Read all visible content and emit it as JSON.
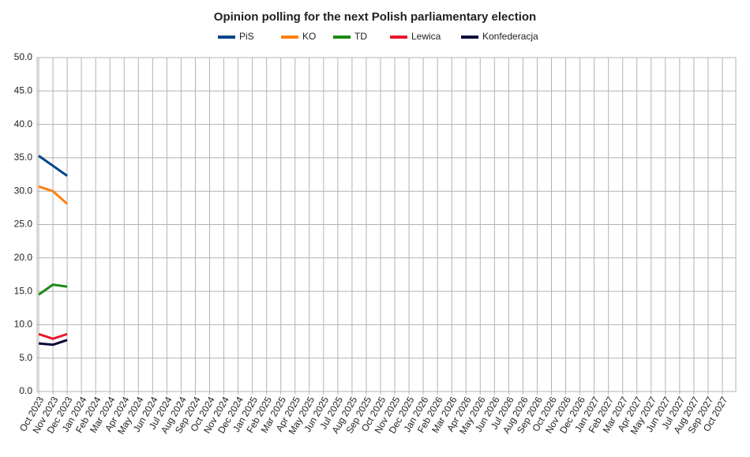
{
  "chart_data": {
    "type": "line",
    "title": "Opinion polling for the next Polish parliamentary election",
    "categories": [
      "Oct 2023",
      "Nov 2023",
      "Dec 2023",
      "Jan 2024",
      "Feb 2024",
      "Mar 2024",
      "Apr 2024",
      "May 2024",
      "Jun 2024",
      "Jul 2024",
      "Aug 2024",
      "Sep 2024",
      "Oct 2024",
      "Nov 2024",
      "Dec 2024",
      "Jan 2025",
      "Feb 2025",
      "Mar 2025",
      "Apr 2025",
      "May 2025",
      "Jun 2025",
      "Jul 2025",
      "Aug 2025",
      "Sep 2025",
      "Oct 2025",
      "Nov 2025",
      "Dec 2025",
      "Jan 2026",
      "Feb 2026",
      "Mar 2026",
      "Apr 2026",
      "May 2026",
      "Jun 2026",
      "Jul 2026",
      "Aug 2026",
      "Sep 2026",
      "Oct 2026",
      "Nov 2026",
      "Dec 2026",
      "Jan 2027",
      "Feb 2027",
      "Mar 2027",
      "Apr 2027",
      "May 2027",
      "Jun 2027",
      "Jul 2027",
      "Aug 2027",
      "Sep 2027",
      "Oct 2027"
    ],
    "series": [
      {
        "name": "PiS",
        "color": "#004586",
        "values": [
          35.3,
          33.8,
          32.3,
          null,
          null,
          null,
          null,
          null,
          null,
          null,
          null,
          null,
          null,
          null,
          null,
          null,
          null,
          null,
          null,
          null,
          null,
          null,
          null,
          null,
          null,
          null,
          null,
          null,
          null,
          null,
          null,
          null,
          null,
          null,
          null,
          null,
          null,
          null,
          null,
          null,
          null,
          null,
          null,
          null,
          null,
          null,
          null,
          null,
          null
        ]
      },
      {
        "name": "KO",
        "color": "#ff7f0e",
        "values": [
          30.7,
          30.0,
          28.1,
          null,
          null,
          null,
          null,
          null,
          null,
          null,
          null,
          null,
          null,
          null,
          null,
          null,
          null,
          null,
          null,
          null,
          null,
          null,
          null,
          null,
          null,
          null,
          null,
          null,
          null,
          null,
          null,
          null,
          null,
          null,
          null,
          null,
          null,
          null,
          null,
          null,
          null,
          null,
          null,
          null,
          null,
          null,
          null,
          null,
          null
        ]
      },
      {
        "name": "TD",
        "color": "#1a8a12",
        "values": [
          14.5,
          16.0,
          15.7,
          null,
          null,
          null,
          null,
          null,
          null,
          null,
          null,
          null,
          null,
          null,
          null,
          null,
          null,
          null,
          null,
          null,
          null,
          null,
          null,
          null,
          null,
          null,
          null,
          null,
          null,
          null,
          null,
          null,
          null,
          null,
          null,
          null,
          null,
          null,
          null,
          null,
          null,
          null,
          null,
          null,
          null,
          null,
          null,
          null,
          null
        ]
      },
      {
        "name": "Lewica",
        "color": "#e8182d",
        "values": [
          8.6,
          7.9,
          8.6,
          null,
          null,
          null,
          null,
          null,
          null,
          null,
          null,
          null,
          null,
          null,
          null,
          null,
          null,
          null,
          null,
          null,
          null,
          null,
          null,
          null,
          null,
          null,
          null,
          null,
          null,
          null,
          null,
          null,
          null,
          null,
          null,
          null,
          null,
          null,
          null,
          null,
          null,
          null,
          null,
          null,
          null,
          null,
          null,
          null,
          null
        ]
      },
      {
        "name": "Konfederacja",
        "color": "#0a0a3a",
        "values": [
          7.2,
          7.0,
          7.7,
          null,
          null,
          null,
          null,
          null,
          null,
          null,
          null,
          null,
          null,
          null,
          null,
          null,
          null,
          null,
          null,
          null,
          null,
          null,
          null,
          null,
          null,
          null,
          null,
          null,
          null,
          null,
          null,
          null,
          null,
          null,
          null,
          null,
          null,
          null,
          null,
          null,
          null,
          null,
          null,
          null,
          null,
          null,
          null,
          null,
          null
        ]
      }
    ],
    "ylim": [
      0,
      50
    ],
    "yticks": [
      {
        "value": 0,
        "label": "0.0"
      },
      {
        "value": 5,
        "label": "5.0"
      },
      {
        "value": 10,
        "label": "10.0"
      },
      {
        "value": 15,
        "label": "15.0"
      },
      {
        "value": 20,
        "label": "20.0"
      },
      {
        "value": 25,
        "label": "25.0"
      },
      {
        "value": 30,
        "label": "30.0"
      },
      {
        "value": 35,
        "label": "35.0"
      },
      {
        "value": 40,
        "label": "40.0"
      },
      {
        "value": 45,
        "label": "45.0"
      },
      {
        "value": 50,
        "label": "50.0"
      }
    ],
    "grid": true
  }
}
